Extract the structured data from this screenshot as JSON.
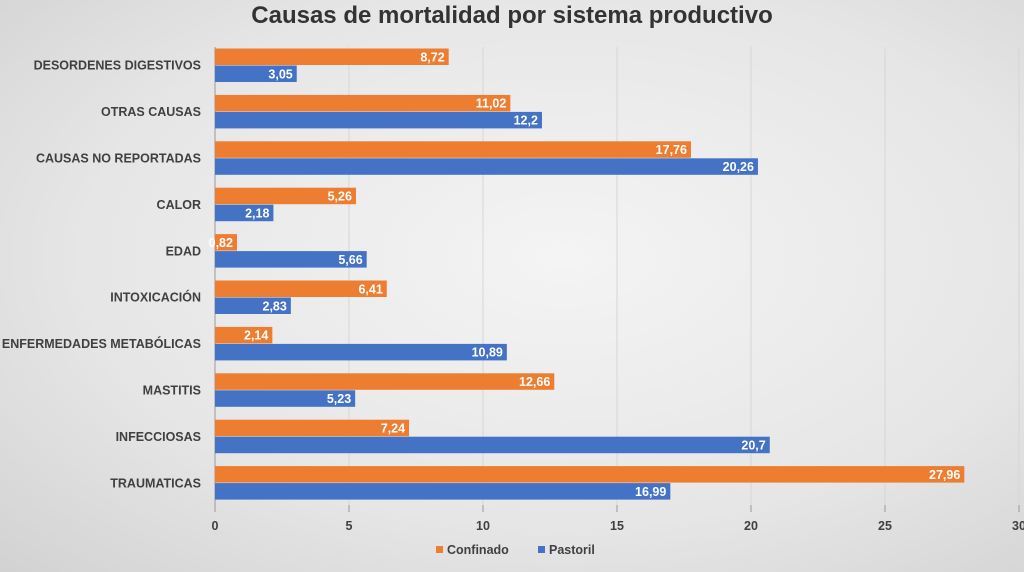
{
  "chart_data": {
    "type": "bar",
    "orientation": "horizontal",
    "title": "Causas de mortalidad por sistema productivo",
    "categories": [
      "DESORDENES DIGESTIVOS",
      "OTRAS CAUSAS",
      "CAUSAS NO REPORTADAS",
      "CALOR",
      "EDAD",
      "INTOXICACIÓN",
      "ENFERMEDADES METABÓLICAS",
      "MASTITIS",
      "INFECCIOSAS",
      "TRAUMATICAS"
    ],
    "series": [
      {
        "name": "Confinado",
        "color": "#ED7D31",
        "values": [
          8.72,
          11.02,
          17.76,
          5.26,
          0.82,
          6.41,
          2.14,
          12.66,
          7.24,
          27.96
        ],
        "labels": [
          "8,72",
          "11,02",
          "17,76",
          "5,26",
          "0,82",
          "6,41",
          "2,14",
          "12,66",
          "7,24",
          "27,96"
        ]
      },
      {
        "name": "Pastoril",
        "color": "#4472C4",
        "values": [
          3.05,
          12.2,
          20.26,
          2.18,
          5.66,
          2.83,
          10.89,
          5.23,
          20.7,
          16.99
        ],
        "labels": [
          "3,05",
          "12,2",
          "20,26",
          "2,18",
          "5,66",
          "2,83",
          "10,89",
          "5,23",
          "20,7",
          "16,99"
        ]
      }
    ],
    "xlim": [
      0,
      30
    ],
    "xticks": [
      "0",
      "5",
      "10",
      "15",
      "20",
      "25",
      "30"
    ],
    "grid": true,
    "legend": "bottom"
  }
}
